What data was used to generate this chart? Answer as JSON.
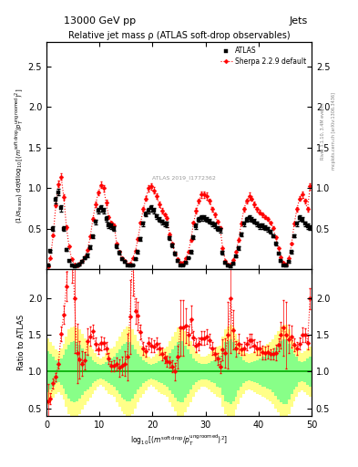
{
  "title_top": "13000 GeV pp",
  "title_right": "Jets",
  "plot_title": "Relative jet mass ρ (ATLAS soft-drop observables)",
  "ylabel_main": "(1/σ_{resum}) dσ/d log_{10}[(m^{soft drop}/p_T^{ungroomed})^2]",
  "ylabel_ratio": "Ratio to ATLAS",
  "right_label": "Rivet 3.1.10, 3.4M events",
  "right_label2": "mcplots.cern.ch [arXiv:1306.3436]",
  "watermark": "ATLAS 2019_I1772362",
  "atlas_x": [
    0.25,
    0.75,
    1.25,
    1.75,
    2.25,
    2.75,
    3.25,
    3.75,
    4.25,
    4.75,
    5.25,
    5.75,
    6.25,
    6.75,
    7.25,
    7.75,
    8.25,
    8.75,
    9.25,
    9.75,
    10.25,
    10.75,
    11.25,
    11.75,
    12.25,
    12.75,
    13.25,
    13.75,
    14.25,
    14.75,
    15.25,
    15.75,
    16.25,
    16.75,
    17.25,
    17.75,
    18.25,
    18.75,
    19.25,
    19.75,
    20.25,
    20.75,
    21.25,
    21.75,
    22.25,
    22.75,
    23.25,
    23.75,
    24.25,
    24.75,
    25.25,
    25.75,
    26.25,
    26.75,
    27.25,
    27.75,
    28.25,
    28.75,
    29.25,
    29.75,
    30.25,
    30.75,
    31.25,
    31.75,
    32.25,
    32.75,
    33.25,
    33.75,
    34.25,
    34.75,
    35.25,
    35.75,
    36.25,
    36.75,
    37.25,
    37.75,
    38.25,
    38.75,
    39.25,
    39.75,
    40.25,
    40.75,
    41.25,
    41.75,
    42.25,
    42.75,
    43.25,
    43.75,
    44.25,
    44.75,
    45.25,
    45.75,
    46.25,
    46.75,
    47.25,
    47.75,
    48.25,
    48.75,
    49.25,
    49.75
  ],
  "atlas_y": [
    0.05,
    0.22,
    0.5,
    0.85,
    0.95,
    0.75,
    0.5,
    0.24,
    0.1,
    0.04,
    0.03,
    0.04,
    0.06,
    0.09,
    0.13,
    0.17,
    0.27,
    0.4,
    0.58,
    0.72,
    0.75,
    0.72,
    0.62,
    0.54,
    0.53,
    0.5,
    0.28,
    0.2,
    0.12,
    0.09,
    0.05,
    0.04,
    0.05,
    0.12,
    0.21,
    0.37,
    0.56,
    0.68,
    0.72,
    0.75,
    0.72,
    0.65,
    0.61,
    0.58,
    0.56,
    0.55,
    0.38,
    0.29,
    0.19,
    0.1,
    0.05,
    0.05,
    0.08,
    0.14,
    0.21,
    0.39,
    0.53,
    0.61,
    0.63,
    0.63,
    0.61,
    0.59,
    0.56,
    0.54,
    0.5,
    0.48,
    0.2,
    0.08,
    0.04,
    0.03,
    0.07,
    0.16,
    0.26,
    0.43,
    0.56,
    0.61,
    0.63,
    0.61,
    0.59,
    0.56,
    0.53,
    0.53,
    0.51,
    0.49,
    0.46,
    0.41,
    0.31,
    0.19,
    0.1,
    0.05,
    0.04,
    0.09,
    0.21,
    0.41,
    0.56,
    0.63,
    0.61,
    0.56,
    0.53,
    0.51
  ],
  "atlas_yerr": [
    0.01,
    0.02,
    0.03,
    0.04,
    0.04,
    0.04,
    0.03,
    0.02,
    0.01,
    0.01,
    0.01,
    0.01,
    0.01,
    0.01,
    0.01,
    0.02,
    0.02,
    0.02,
    0.03,
    0.03,
    0.04,
    0.03,
    0.03,
    0.03,
    0.03,
    0.03,
    0.02,
    0.02,
    0.01,
    0.01,
    0.01,
    0.01,
    0.01,
    0.01,
    0.02,
    0.02,
    0.03,
    0.03,
    0.03,
    0.04,
    0.03,
    0.03,
    0.03,
    0.03,
    0.03,
    0.03,
    0.02,
    0.02,
    0.02,
    0.01,
    0.01,
    0.01,
    0.01,
    0.01,
    0.02,
    0.02,
    0.03,
    0.03,
    0.03,
    0.03,
    0.03,
    0.03,
    0.03,
    0.03,
    0.03,
    0.03,
    0.02,
    0.01,
    0.01,
    0.01,
    0.01,
    0.01,
    0.02,
    0.02,
    0.03,
    0.03,
    0.03,
    0.03,
    0.03,
    0.03,
    0.03,
    0.03,
    0.03,
    0.03,
    0.02,
    0.02,
    0.02,
    0.01,
    0.01,
    0.01,
    0.01,
    0.01,
    0.02,
    0.02,
    0.03,
    0.03,
    0.03,
    0.03,
    0.03,
    0.03
  ],
  "sherpa_y": [
    0.03,
    0.14,
    0.42,
    0.79,
    1.05,
    1.14,
    0.89,
    0.52,
    0.28,
    0.12,
    0.06,
    0.05,
    0.07,
    0.1,
    0.15,
    0.24,
    0.4,
    0.62,
    0.8,
    0.94,
    1.04,
    1.0,
    0.82,
    0.64,
    0.57,
    0.54,
    0.31,
    0.21,
    0.13,
    0.1,
    0.06,
    0.07,
    0.13,
    0.22,
    0.37,
    0.57,
    0.74,
    0.87,
    1.0,
    1.02,
    0.97,
    0.9,
    0.8,
    0.72,
    0.67,
    0.63,
    0.43,
    0.31,
    0.19,
    0.12,
    0.08,
    0.08,
    0.13,
    0.21,
    0.36,
    0.57,
    0.72,
    0.84,
    0.92,
    0.92,
    0.9,
    0.84,
    0.74,
    0.67,
    0.59,
    0.51,
    0.26,
    0.1,
    0.06,
    0.06,
    0.11,
    0.21,
    0.36,
    0.56,
    0.74,
    0.84,
    0.9,
    0.87,
    0.8,
    0.74,
    0.7,
    0.67,
    0.64,
    0.62,
    0.57,
    0.51,
    0.39,
    0.26,
    0.15,
    0.08,
    0.06,
    0.13,
    0.31,
    0.56,
    0.74,
    0.87,
    0.92,
    0.84,
    0.74,
    1.02
  ],
  "sherpa_yerr": [
    0.01,
    0.01,
    0.02,
    0.03,
    0.04,
    0.04,
    0.03,
    0.02,
    0.01,
    0.01,
    0.01,
    0.01,
    0.01,
    0.01,
    0.01,
    0.01,
    0.02,
    0.02,
    0.03,
    0.03,
    0.04,
    0.04,
    0.03,
    0.02,
    0.02,
    0.02,
    0.01,
    0.01,
    0.01,
    0.01,
    0.01,
    0.01,
    0.01,
    0.01,
    0.02,
    0.02,
    0.03,
    0.03,
    0.04,
    0.04,
    0.04,
    0.03,
    0.03,
    0.03,
    0.02,
    0.02,
    0.02,
    0.01,
    0.01,
    0.01,
    0.01,
    0.01,
    0.01,
    0.01,
    0.02,
    0.02,
    0.03,
    0.03,
    0.04,
    0.04,
    0.04,
    0.03,
    0.03,
    0.03,
    0.02,
    0.02,
    0.01,
    0.01,
    0.01,
    0.01,
    0.01,
    0.01,
    0.02,
    0.02,
    0.03,
    0.03,
    0.04,
    0.03,
    0.03,
    0.03,
    0.03,
    0.03,
    0.02,
    0.02,
    0.02,
    0.02,
    0.02,
    0.01,
    0.01,
    0.01,
    0.01,
    0.01,
    0.01,
    0.02,
    0.03,
    0.03,
    0.04,
    0.03,
    0.03,
    0.04
  ],
  "yellow_lo": [
    0.55,
    0.6,
    0.65,
    0.7,
    0.72,
    0.68,
    0.62,
    0.52,
    0.42,
    0.4,
    0.38,
    0.4,
    0.42,
    0.48,
    0.55,
    0.6,
    0.65,
    0.7,
    0.75,
    0.8,
    0.82,
    0.8,
    0.75,
    0.7,
    0.68,
    0.66,
    0.58,
    0.52,
    0.46,
    0.42,
    0.38,
    0.38,
    0.42,
    0.5,
    0.58,
    0.64,
    0.7,
    0.75,
    0.8,
    0.82,
    0.8,
    0.76,
    0.72,
    0.7,
    0.68,
    0.66,
    0.58,
    0.52,
    0.46,
    0.4,
    0.38,
    0.38,
    0.44,
    0.52,
    0.58,
    0.66,
    0.72,
    0.76,
    0.8,
    0.8,
    0.78,
    0.76,
    0.72,
    0.7,
    0.66,
    0.64,
    0.52,
    0.42,
    0.38,
    0.36,
    0.4,
    0.48,
    0.56,
    0.64,
    0.7,
    0.74,
    0.76,
    0.74,
    0.72,
    0.7,
    0.68,
    0.66,
    0.64,
    0.62,
    0.6,
    0.56,
    0.5,
    0.44,
    0.38,
    0.36,
    0.36,
    0.42,
    0.52,
    0.6,
    0.66,
    0.72,
    0.74,
    0.72,
    0.68,
    0.66
  ],
  "yellow_hi": [
    1.45,
    1.4,
    1.35,
    1.3,
    1.28,
    1.32,
    1.38,
    1.48,
    1.58,
    1.6,
    1.62,
    1.6,
    1.58,
    1.52,
    1.45,
    1.4,
    1.35,
    1.3,
    1.25,
    1.2,
    1.18,
    1.2,
    1.25,
    1.3,
    1.32,
    1.34,
    1.42,
    1.48,
    1.54,
    1.58,
    1.62,
    1.62,
    1.58,
    1.5,
    1.42,
    1.36,
    1.3,
    1.25,
    1.2,
    1.18,
    1.2,
    1.24,
    1.28,
    1.3,
    1.32,
    1.34,
    1.42,
    1.48,
    1.54,
    1.6,
    1.62,
    1.62,
    1.56,
    1.48,
    1.42,
    1.34,
    1.28,
    1.24,
    1.2,
    1.2,
    1.22,
    1.24,
    1.28,
    1.3,
    1.34,
    1.36,
    1.48,
    1.58,
    1.62,
    1.64,
    1.6,
    1.52,
    1.44,
    1.36,
    1.3,
    1.26,
    1.24,
    1.26,
    1.28,
    1.3,
    1.32,
    1.34,
    1.36,
    1.38,
    1.4,
    1.44,
    1.5,
    1.56,
    1.62,
    1.64,
    1.64,
    1.58,
    1.48,
    1.4,
    1.34,
    1.28,
    1.26,
    1.28,
    1.32,
    1.34
  ],
  "green_lo": [
    0.72,
    0.76,
    0.8,
    0.84,
    0.86,
    0.82,
    0.77,
    0.7,
    0.63,
    0.6,
    0.58,
    0.6,
    0.63,
    0.68,
    0.73,
    0.76,
    0.8,
    0.84,
    0.87,
    0.9,
    0.91,
    0.9,
    0.87,
    0.84,
    0.82,
    0.8,
    0.74,
    0.7,
    0.65,
    0.62,
    0.59,
    0.59,
    0.63,
    0.7,
    0.76,
    0.8,
    0.84,
    0.87,
    0.9,
    0.91,
    0.9,
    0.88,
    0.86,
    0.84,
    0.82,
    0.8,
    0.74,
    0.7,
    0.65,
    0.6,
    0.58,
    0.58,
    0.64,
    0.7,
    0.76,
    0.82,
    0.86,
    0.88,
    0.9,
    0.9,
    0.89,
    0.88,
    0.86,
    0.84,
    0.8,
    0.78,
    0.68,
    0.6,
    0.58,
    0.56,
    0.6,
    0.66,
    0.74,
    0.8,
    0.84,
    0.87,
    0.88,
    0.87,
    0.86,
    0.84,
    0.82,
    0.8,
    0.79,
    0.77,
    0.76,
    0.72,
    0.67,
    0.62,
    0.58,
    0.56,
    0.56,
    0.62,
    0.7,
    0.76,
    0.8,
    0.86,
    0.87,
    0.86,
    0.82,
    0.8
  ],
  "green_hi": [
    1.28,
    1.24,
    1.2,
    1.16,
    1.14,
    1.18,
    1.23,
    1.3,
    1.37,
    1.4,
    1.42,
    1.4,
    1.37,
    1.32,
    1.27,
    1.24,
    1.2,
    1.16,
    1.13,
    1.1,
    1.09,
    1.1,
    1.13,
    1.16,
    1.18,
    1.2,
    1.26,
    1.3,
    1.35,
    1.38,
    1.41,
    1.41,
    1.37,
    1.3,
    1.24,
    1.2,
    1.16,
    1.13,
    1.1,
    1.09,
    1.1,
    1.12,
    1.14,
    1.16,
    1.18,
    1.2,
    1.26,
    1.3,
    1.35,
    1.4,
    1.42,
    1.42,
    1.36,
    1.3,
    1.24,
    1.18,
    1.14,
    1.12,
    1.1,
    1.1,
    1.11,
    1.12,
    1.14,
    1.16,
    1.2,
    1.22,
    1.32,
    1.4,
    1.42,
    1.44,
    1.4,
    1.34,
    1.26,
    1.2,
    1.16,
    1.13,
    1.12,
    1.13,
    1.14,
    1.16,
    1.18,
    1.2,
    1.21,
    1.23,
    1.24,
    1.28,
    1.33,
    1.38,
    1.42,
    1.44,
    1.44,
    1.38,
    1.3,
    1.24,
    1.2,
    1.14,
    1.13,
    1.14,
    1.18,
    1.2
  ],
  "xlim": [
    0,
    50
  ],
  "ylim_main": [
    0,
    2.8
  ],
  "ylim_ratio": [
    0.4,
    2.4
  ],
  "yticks_main": [
    0.5,
    1.0,
    1.5,
    2.0,
    2.5
  ],
  "yticks_ratio": [
    0.5,
    1.0,
    1.5,
    2.0
  ],
  "xticks": [
    0,
    10,
    20,
    30,
    40,
    50
  ],
  "xticklabels": [
    "0",
    "10",
    "20",
    "30",
    "40",
    "50"
  ],
  "atlas_color": "black",
  "sherpa_color": "red",
  "atlas_marker": "s",
  "sherpa_marker": "D",
  "atlas_markersize": 3.0,
  "sherpa_markersize": 2.5,
  "atlas_label": "ATLAS",
  "sherpa_label": "Sherpa 2.2.9 default",
  "bg_color": "white",
  "ratio_unity_color": "#00aa00",
  "yellow_band_color": "#ffff88",
  "green_band_color": "#88ff88"
}
